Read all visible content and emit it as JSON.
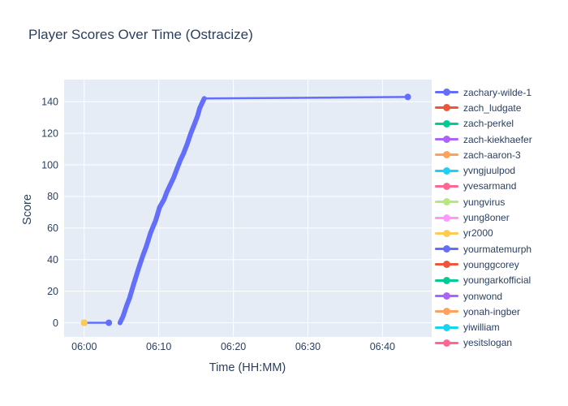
{
  "title": "Player Scores Over Time (Ostracize)",
  "x_axis": {
    "title": "Time (HH:MM)",
    "tick_labels": [
      "06:00",
      "06:10",
      "06:20",
      "06:30",
      "06:40"
    ],
    "tick_minutes": [
      0,
      10,
      20,
      30,
      40
    ],
    "range_minutes": [
      -2.7,
      46.6
    ]
  },
  "y_axis": {
    "title": "Score",
    "ticks": [
      0,
      20,
      40,
      60,
      80,
      100,
      120,
      140
    ],
    "range": [
      -9,
      154
    ]
  },
  "colors": {
    "paper_bg": "#ffffff",
    "plot_bg": "#e5ecf6",
    "grid": "#ffffff",
    "text": "#2a3f5f",
    "accent_line": "#636efa"
  },
  "legend": {
    "items": [
      {
        "label": "zachary-wilde-1",
        "color": "#636efa"
      },
      {
        "label": "zach_ludgate",
        "color": "#ef553b"
      },
      {
        "label": "zach-perkel",
        "color": "#00cc96"
      },
      {
        "label": "zach-kiekhaefer",
        "color": "#ab63fa"
      },
      {
        "label": "zach-aaron-3",
        "color": "#ffa15a"
      },
      {
        "label": "yvngjuulpod",
        "color": "#19d3f3"
      },
      {
        "label": "yvesarmand",
        "color": "#ff6692"
      },
      {
        "label": "yungvirus",
        "color": "#b6e880"
      },
      {
        "label": "yung8oner",
        "color": "#ff97ff"
      },
      {
        "label": "yr2000",
        "color": "#fecb52"
      },
      {
        "label": "yourmatemurph",
        "color": "#636efa"
      },
      {
        "label": "younggcorey",
        "color": "#ef553b"
      },
      {
        "label": "youngarkofficial",
        "color": "#00cc96"
      },
      {
        "label": "yonwond",
        "color": "#ab63fa"
      },
      {
        "label": "yonah-ingber",
        "color": "#ffa15a"
      },
      {
        "label": "yiwilliam",
        "color": "#19d3f3"
      },
      {
        "label": "yesitslogan",
        "color": "#ff6692"
      }
    ]
  },
  "chart_data": {
    "type": "line",
    "title": "Player Scores Over Time (Ostracize)",
    "xlabel": "Time (HH:MM)",
    "ylabel": "Score",
    "x_unit": "minutes after 06:00",
    "xlim_minutes": [
      -2.7,
      46.6
    ],
    "ylim": [
      -9,
      154
    ],
    "grid": true,
    "legend_position": "right",
    "series": [
      {
        "name": "zachary-wilde-1",
        "color": "#636efa",
        "segments": [
          {
            "thick": false,
            "x": [
              0,
              3.3
            ],
            "y": [
              0,
              0
            ]
          },
          {
            "thick": true,
            "x": [
              4.8,
              5.2,
              5.7,
              6.1,
              6.6,
              7.0,
              7.4,
              7.9,
              8.3,
              8.9,
              9.6,
              10.1,
              10.7,
              11.1,
              11.5,
              12.0,
              12.4,
              12.9,
              13.3,
              13.8,
              14.3,
              14.8,
              15.2,
              15.5,
              15.9,
              16.1
            ],
            "y": [
              0,
              4,
              11,
              16,
              24,
              30,
              36,
              43,
              48,
              57,
              65,
              73,
              78,
              83,
              87,
              92,
              97,
              103,
              107,
              113,
              120,
              126,
              131,
              136,
              140,
              142
            ]
          },
          {
            "thick": false,
            "x": [
              16.1,
              43.4
            ],
            "y": [
              142,
              143
            ]
          }
        ],
        "markers": [
          {
            "x": 0,
            "y": 0
          },
          {
            "x": 3.3,
            "y": 0
          },
          {
            "x": 43.4,
            "y": 143
          }
        ]
      },
      {
        "name": "yr2000",
        "color": "#fecb52",
        "segments": [],
        "markers": [
          {
            "x": 0,
            "y": 0
          }
        ]
      }
    ]
  }
}
